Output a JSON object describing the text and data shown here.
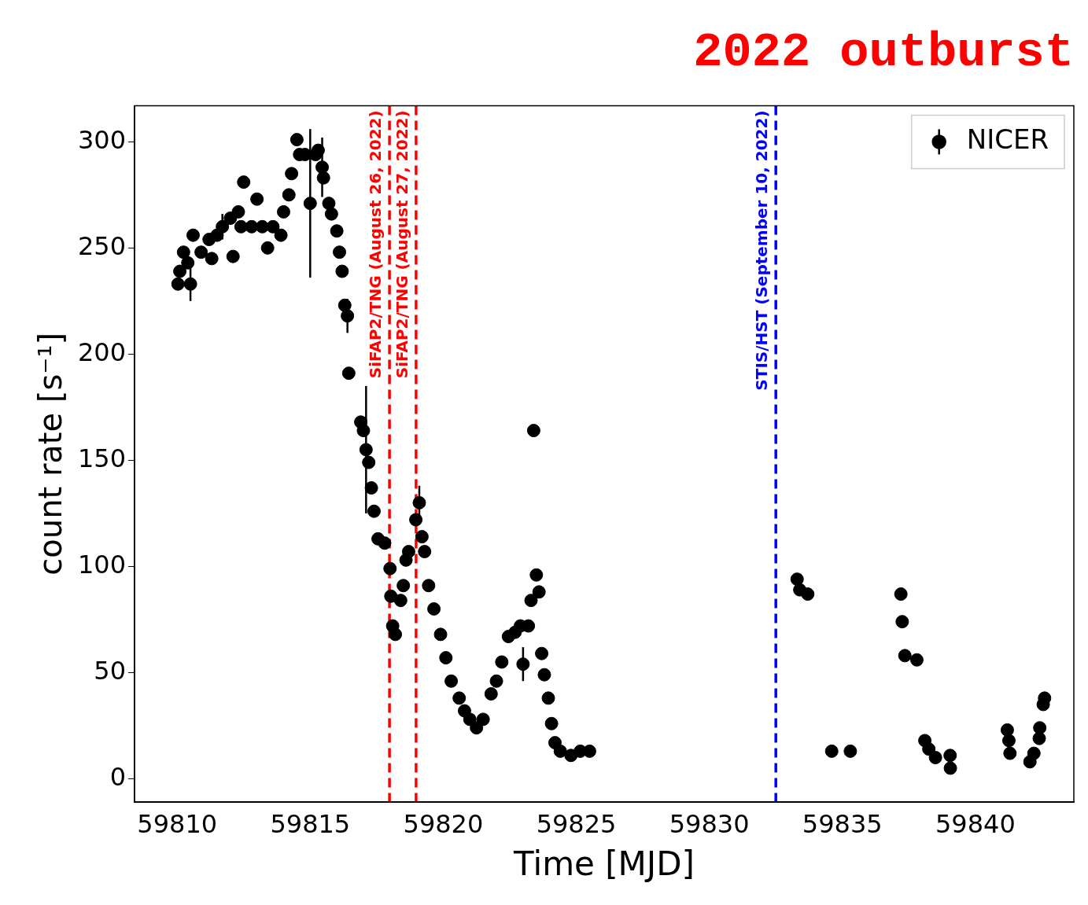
{
  "chart_data": {
    "type": "scatter",
    "title": "2022 outburst",
    "xlabel": "Time [MJD]",
    "ylabel": "count rate [s⁻¹]",
    "xlim": [
      59808.4,
      59843.7
    ],
    "xticks": [
      59810,
      59815,
      59820,
      59825,
      59830,
      59835,
      59840
    ],
    "ylim": [
      -11,
      317
    ],
    "yticks": [
      0,
      50,
      100,
      150,
      200,
      250,
      300
    ],
    "grid": false,
    "legend": "top right",
    "marker": "circle",
    "ref_lines": [
      {
        "axis": "x",
        "value": 59817.98,
        "label": "SiFAP2/TNG (August 26, 2022)",
        "color": "#ff0000",
        "line_style": "dashed"
      },
      {
        "axis": "x",
        "value": 59818.98,
        "label": "SiFAP2/TNG (August 27, 2022)",
        "color": "#ff0000",
        "line_style": "dashed"
      },
      {
        "axis": "x",
        "value": 59832.5,
        "label": "STIS/HST (September 10, 2022)",
        "color": "#0000ff",
        "line_style": "dashed"
      }
    ],
    "series": [
      {
        "name": "NICER",
        "color": "#000000",
        "x": [
          59810.03,
          59810.1,
          59810.24,
          59810.4,
          59810.5,
          59810.6,
          59810.9,
          59811.2,
          59811.3,
          59811.5,
          59811.7,
          59812.0,
          59812.1,
          59812.3,
          59812.4,
          59812.5,
          59812.8,
          59813.0,
          59813.2,
          59813.4,
          59813.6,
          59813.9,
          59814.0,
          59814.2,
          59814.3,
          59814.5,
          59814.6,
          59814.8,
          59815.0,
          59815.2,
          59815.3,
          59815.45,
          59815.5,
          59815.7,
          59815.8,
          59816.0,
          59816.1,
          59816.2,
          59816.3,
          59816.4,
          59816.45,
          59816.9,
          59817.0,
          59817.1,
          59817.2,
          59817.3,
          59817.4,
          59817.55,
          59817.8,
          59818.0,
          59818.03,
          59818.1,
          59818.2,
          59818.4,
          59818.5,
          59818.6,
          59818.7,
          59818.97,
          59819.1,
          59819.2,
          59819.3,
          59819.45,
          59819.65,
          59819.9,
          59820.1,
          59820.3,
          59820.6,
          59820.8,
          59821.0,
          59821.25,
          59821.5,
          59821.8,
          59822.0,
          59822.2,
          59822.45,
          59822.7,
          59822.9,
          59823.0,
          59823.2,
          59823.3,
          59823.4,
          59823.5,
          59823.6,
          59823.7,
          59823.8,
          59823.95,
          59824.07,
          59824.2,
          59824.4,
          59824.8,
          59825.15,
          59825.5,
          59833.3,
          59833.4,
          59833.7,
          59834.6,
          59835.3,
          59837.2,
          59837.25,
          59837.35,
          59837.8,
          59838.1,
          59838.25,
          59838.5,
          59839.05,
          59839.06,
          59841.2,
          59841.26,
          59841.3,
          59842.05,
          59842.2,
          59842.4,
          59842.42,
          59842.55,
          59842.6
        ],
        "values": [
          233,
          239,
          248,
          243,
          233,
          256,
          248,
          254,
          245,
          256,
          260,
          264,
          246,
          267,
          260,
          281,
          260,
          273,
          260,
          250,
          260,
          256,
          267,
          275,
          285,
          301,
          294,
          294,
          271,
          294,
          296,
          288,
          283,
          271,
          266,
          258,
          248,
          239,
          223,
          218,
          191,
          168,
          164,
          155,
          149,
          137,
          126,
          113,
          111,
          99,
          86,
          72,
          68,
          84,
          91,
          103,
          107,
          122,
          130,
          114,
          107,
          91,
          80,
          68,
          57,
          46,
          38,
          32,
          28,
          24,
          28,
          40,
          46,
          55,
          67,
          69,
          72,
          54,
          72,
          84,
          164,
          96,
          88,
          59,
          49,
          38,
          26,
          17,
          13,
          11,
          13,
          13,
          94,
          89,
          87,
          13,
          13,
          87,
          74,
          58,
          56,
          18,
          14,
          10,
          11,
          5,
          23,
          18,
          12,
          8,
          12,
          19,
          24,
          35,
          38
        ],
        "errors": [
          null,
          null,
          null,
          null,
          8,
          null,
          null,
          null,
          null,
          null,
          6,
          null,
          null,
          null,
          null,
          null,
          null,
          null,
          null,
          null,
          null,
          null,
          null,
          null,
          null,
          null,
          null,
          null,
          35,
          null,
          null,
          14,
          null,
          null,
          null,
          null,
          null,
          null,
          null,
          8,
          null,
          null,
          null,
          30,
          null,
          null,
          null,
          null,
          null,
          null,
          null,
          null,
          null,
          null,
          null,
          null,
          null,
          null,
          8,
          null,
          null,
          null,
          null,
          null,
          null,
          null,
          null,
          null,
          null,
          null,
          null,
          null,
          null,
          null,
          null,
          null,
          null,
          8,
          null,
          null,
          null,
          null,
          null,
          null,
          null,
          null,
          null,
          null,
          null,
          null,
          null,
          null,
          null,
          null,
          null,
          null,
          null,
          null,
          null,
          null,
          null,
          null,
          null,
          null,
          null,
          null,
          null,
          null,
          null,
          null,
          null,
          null,
          null,
          null,
          null
        ]
      }
    ]
  }
}
